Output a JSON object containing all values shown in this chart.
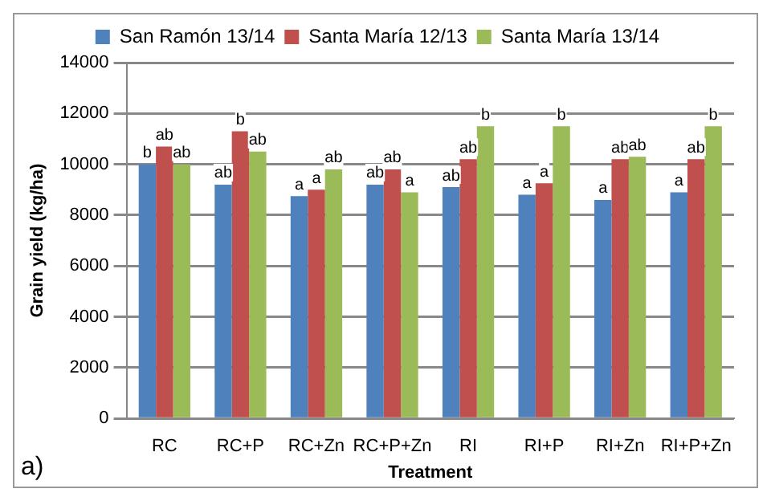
{
  "chart_data": {
    "type": "bar",
    "xlabel": "Treatment",
    "ylabel": "Grain yield (kg/ha)",
    "categories": [
      "RC",
      "RC+P",
      "RC+Zn",
      "RC+P+Zn",
      "RI",
      "RI+P",
      "RI+Zn",
      "RI+P+Zn"
    ],
    "series": [
      {
        "name": "San Ramón 13/14",
        "color": "#4f81bd",
        "values": [
          10000,
          9200,
          8750,
          9200,
          9100,
          8800,
          8600,
          8900
        ],
        "value_labels": [
          "b",
          "ab",
          "a",
          "ab",
          "ab",
          "a",
          "a",
          "a"
        ]
      },
      {
        "name": "Santa María 12/13",
        "color": "#c0504d",
        "values": [
          10700,
          11300,
          9000,
          9800,
          10200,
          9250,
          10200,
          10200
        ],
        "value_labels": [
          "ab",
          "b",
          "a",
          "ab",
          "ab",
          "a",
          "ab",
          "ab"
        ]
      },
      {
        "name": "Santa María 13/14",
        "color": "#9bbb59",
        "values": [
          10000,
          10500,
          9800,
          8900,
          11500,
          11500,
          10300,
          11500
        ],
        "value_labels": [
          "ab",
          "ab",
          "ab",
          "a",
          "b",
          "b",
          "ab",
          "b"
        ]
      }
    ],
    "ylim": [
      0,
      14000
    ],
    "yticks": [
      0,
      2000,
      4000,
      6000,
      8000,
      10000,
      12000,
      14000
    ],
    "grid": "y",
    "legend": "top",
    "annotations": [
      "a)"
    ]
  }
}
